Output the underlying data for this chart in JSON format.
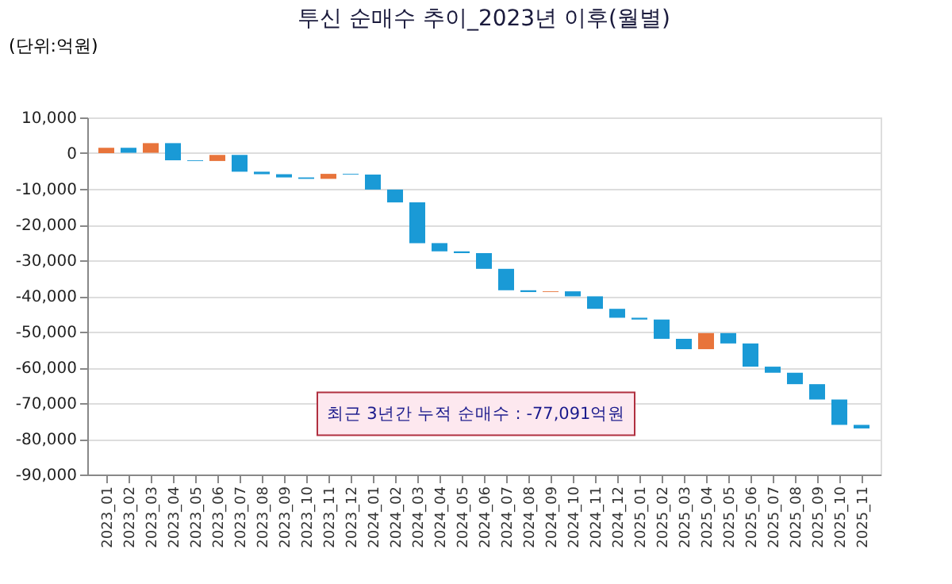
{
  "chart_data": {
    "type": "bar",
    "title": "투신 순매수 추이_2023년 이후(월별)",
    "ylabel": "(단위:억원)",
    "categories": [
      "2023_01",
      "2023_02",
      "2023_03",
      "2023_04",
      "2023_05",
      "2023_06",
      "2023_07",
      "2023_08",
      "2023_09",
      "2023_10",
      "2023_11",
      "2023_12",
      "2024_01",
      "2024_02",
      "2024_03",
      "2024_04",
      "2024_05",
      "2024_06",
      "2024_07",
      "2024_08",
      "2024_09",
      "2024_10",
      "2024_11",
      "2024_12",
      "2025_01",
      "2025_02",
      "2025_03",
      "2025_04",
      "2025_05",
      "2025_06",
      "2025_07",
      "2025_08",
      "2025_09",
      "2025_10",
      "2025_11"
    ],
    "base": [
      0,
      1500,
      100,
      2800,
      -2000,
      -2200,
      -500,
      -5200,
      -5900,
      -6800,
      -7200,
      -5800,
      -6000,
      -10200,
      -13800,
      -25200,
      -27500,
      -28000,
      -32400,
      -38400,
      -38900,
      -38700,
      -40100,
      -43600,
      -46100,
      -46600,
      -52000,
      -54900,
      -50400,
      -53300,
      -59800,
      -61500,
      -64700,
      -69000,
      -76100
    ],
    "values": [
      1500,
      -1400,
      2700,
      -4800,
      -200,
      1700,
      -4700,
      -700,
      -900,
      -400,
      1400,
      -200,
      -4200,
      -3600,
      -11400,
      -2300,
      -500,
      -4400,
      -6000,
      -500,
      200,
      -1400,
      -3500,
      -2500,
      -500,
      -5400,
      -2900,
      4500,
      -2900,
      -6500,
      -1700,
      -3200,
      -4300,
      -7100,
      -1000
    ],
    "colors": [
      "#e8743b",
      "#1a9ad6",
      "#e8743b",
      "#1a9ad6",
      "#1a9ad6",
      "#e8743b",
      "#1a9ad6",
      "#1a9ad6",
      "#1a9ad6",
      "#1a9ad6",
      "#e8743b",
      "#1a9ad6",
      "#1a9ad6",
      "#1a9ad6",
      "#1a9ad6",
      "#1a9ad6",
      "#1a9ad6",
      "#1a9ad6",
      "#1a9ad6",
      "#1a9ad6",
      "#e8743b",
      "#1a9ad6",
      "#1a9ad6",
      "#1a9ad6",
      "#1a9ad6",
      "#1a9ad6",
      "#1a9ad6",
      "#e8743b",
      "#1a9ad6",
      "#1a9ad6",
      "#1a9ad6",
      "#1a9ad6",
      "#1a9ad6",
      "#1a9ad6",
      "#1a9ad6"
    ],
    "ylim": [
      -90000,
      10000
    ],
    "yticks": [
      {
        "value": -90000,
        "label": "-90,000"
      },
      {
        "value": -80000,
        "label": "-80,000"
      },
      {
        "value": -70000,
        "label": "-70,000"
      },
      {
        "value": -60000,
        "label": "-60,000"
      },
      {
        "value": -50000,
        "label": "-50,000"
      },
      {
        "value": -40000,
        "label": "-40,000"
      },
      {
        "value": -30000,
        "label": "-30,000"
      },
      {
        "value": -20000,
        "label": "-20,000"
      },
      {
        "value": -10000,
        "label": "-10,000"
      },
      0,
      {
        "value": 10000,
        "label": "10,000"
      }
    ],
    "grid": "y",
    "annotations": [
      "최근 3년간 누적 순매수 : -77,091억원"
    ]
  }
}
